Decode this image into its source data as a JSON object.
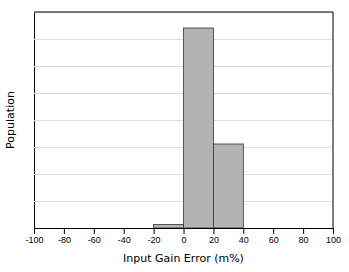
{
  "chart_data": {
    "type": "histogram",
    "bins": [
      -20,
      0,
      20,
      40
    ],
    "values": [
      0.018,
      1.0,
      0.42
    ],
    "color": "#b3b3b3",
    "xlim": [
      -100,
      100
    ],
    "xticks": [
      -100,
      -80,
      -60,
      -40,
      -20,
      0,
      20,
      40,
      60,
      80,
      100
    ],
    "ylim": [
      0,
      1.08
    ],
    "yticks": [
      0.135,
      0.27,
      0.405,
      0.54,
      0.675,
      0.81,
      0.945,
      1.08
    ],
    "x_label": "Input Gain Error (m%)",
    "y_label": "Population",
    "grid": true,
    "tick_labels": "x"
  }
}
